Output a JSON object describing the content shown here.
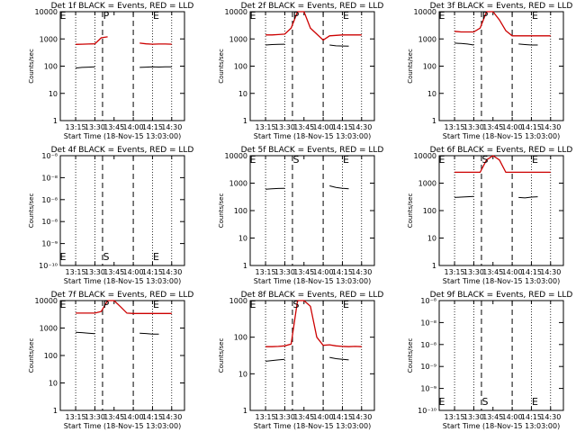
{
  "figure": {
    "x_label": "Start Time (18-Nov-15 13:03:00)",
    "y_label": "Counts/sec",
    "time_ticks": [
      "13:15",
      "13:30",
      "13:45",
      "14:00",
      "14:15",
      "14:30"
    ],
    "markers": [
      "S",
      "P",
      "E"
    ],
    "colors": {
      "events": "#000000",
      "lld": "#cc0000",
      "axes": "#000000"
    }
  },
  "chart_data": [
    {
      "type": "line",
      "title": "Det 1f BLACK = Events, RED = LLD",
      "yscale": "log",
      "ylim": [
        1,
        10000
      ],
      "y_ticks": [
        "1",
        "10",
        "100",
        "1000",
        "10000"
      ],
      "x": [
        "13:15",
        "13:20",
        "13:25",
        "13:30",
        "13:35",
        "13:40",
        "13:45",
        "13:50",
        "13:55",
        "14:00",
        "14:05",
        "14:10",
        "14:15",
        "14:20",
        "14:25",
        "14:30"
      ],
      "series": [
        {
          "name": "Events",
          "values": [
            85,
            90,
            92,
            95,
            null,
            null,
            null,
            null,
            null,
            null,
            90,
            92,
            95,
            93,
            94,
            95
          ]
        },
        {
          "name": "LLD",
          "values": [
            630,
            640,
            650,
            660,
            1100,
            1200,
            null,
            null,
            null,
            null,
            700,
            660,
            640,
            650,
            650,
            640
          ]
        }
      ]
    },
    {
      "type": "line",
      "title": "Det 2f BLACK = Events, RED = LLD",
      "yscale": "log",
      "ylim": [
        1,
        10000
      ],
      "y_ticks": [
        "1",
        "10",
        "100",
        "1000",
        "10000"
      ],
      "x": [
        "13:15",
        "13:20",
        "13:25",
        "13:30",
        "13:35",
        "13:40",
        "13:45",
        "13:50",
        "13:55",
        "14:00",
        "14:05",
        "14:10",
        "14:15",
        "14:20",
        "14:25",
        "14:30"
      ],
      "series": [
        {
          "name": "Events",
          "values": [
            600,
            620,
            630,
            640,
            null,
            null,
            null,
            null,
            null,
            null,
            600,
            560,
            550,
            540,
            null,
            null
          ]
        },
        {
          "name": "LLD",
          "values": [
            1400,
            1400,
            1450,
            1500,
            2500,
            10000,
            10000,
            2500,
            1500,
            900,
            1300,
            1350,
            1400,
            1400,
            1400,
            1400
          ]
        }
      ]
    },
    {
      "type": "line",
      "title": "Det 3f BLACK = Events, RED = LLD",
      "yscale": "log",
      "ylim": [
        1,
        10000
      ],
      "y_ticks": [
        "1",
        "10",
        "100",
        "1000",
        "10000"
      ],
      "x": [
        "13:15",
        "13:20",
        "13:25",
        "13:30",
        "13:35",
        "13:40",
        "13:45",
        "13:50",
        "13:55",
        "14:00",
        "14:05",
        "14:10",
        "14:15",
        "14:20",
        "14:25",
        "14:30"
      ],
      "series": [
        {
          "name": "Events",
          "values": [
            700,
            680,
            650,
            600,
            null,
            null,
            null,
            null,
            null,
            null,
            650,
            620,
            600,
            600,
            null,
            null
          ]
        },
        {
          "name": "LLD",
          "values": [
            1900,
            1800,
            1800,
            1800,
            2500,
            10000,
            10000,
            5000,
            2000,
            1300,
            1300,
            1300,
            1300,
            1300,
            1300,
            1300
          ]
        }
      ]
    },
    {
      "type": "line",
      "title": "Det 4f BLACK = Events, RED = LLD",
      "yscale": "log",
      "ylim": [
        1e-10,
        1e-08
      ],
      "y_ticks": [
        "10⁻¹⁰",
        "10⁻⁹",
        "10⁻⁸",
        "10⁻⁸",
        "10⁻⁸",
        "10⁻⁸"
      ],
      "x": [],
      "series": []
    },
    {
      "type": "line",
      "title": "Det 5f BLACK = Events, RED = LLD",
      "yscale": "log",
      "ylim": [
        1,
        10000
      ],
      "y_ticks": [
        "1",
        "10",
        "100",
        "1000",
        "10000"
      ],
      "x": [
        "13:15",
        "13:20",
        "13:25",
        "13:30",
        "13:35",
        "13:40",
        "13:45",
        "13:50",
        "13:55",
        "14:00",
        "14:05",
        "14:10",
        "14:15",
        "14:20",
        "14:25",
        "14:30"
      ],
      "series": [
        {
          "name": "Events",
          "values": [
            600,
            620,
            640,
            650,
            null,
            null,
            null,
            null,
            null,
            null,
            800,
            700,
            650,
            620,
            null,
            null
          ]
        }
      ]
    },
    {
      "type": "line",
      "title": "Det 6f BLACK = Events, RED = LLD",
      "yscale": "log",
      "ylim": [
        1,
        10000
      ],
      "y_ticks": [
        "1",
        "10",
        "100",
        "1000",
        "10000"
      ],
      "x": [
        "13:15",
        "13:20",
        "13:25",
        "13:30",
        "13:35",
        "13:40",
        "13:45",
        "13:50",
        "13:55",
        "14:00",
        "14:05",
        "14:10",
        "14:15",
        "14:20",
        "14:25",
        "14:30"
      ],
      "series": [
        {
          "name": "Events",
          "values": [
            300,
            310,
            320,
            330,
            null,
            null,
            null,
            null,
            null,
            null,
            300,
            290,
            310,
            320,
            null,
            null
          ]
        },
        {
          "name": "LLD",
          "values": [
            2500,
            2500,
            2500,
            2500,
            2500,
            7000,
            10000,
            7000,
            2500,
            2500,
            2500,
            2500,
            2500,
            2500,
            2500,
            2500
          ]
        }
      ]
    },
    {
      "type": "line",
      "title": "Det 7f BLACK = Events, RED = LLD",
      "yscale": "log",
      "ylim": [
        1,
        10000
      ],
      "y_ticks": [
        "1",
        "10",
        "100",
        "1000",
        "10000"
      ],
      "x": [
        "13:15",
        "13:20",
        "13:25",
        "13:30",
        "13:35",
        "13:40",
        "13:45",
        "13:50",
        "13:55",
        "14:00",
        "14:05",
        "14:10",
        "14:15",
        "14:20",
        "14:25",
        "14:30"
      ],
      "series": [
        {
          "name": "Events",
          "values": [
            700,
            680,
            650,
            620,
            null,
            null,
            null,
            null,
            null,
            null,
            650,
            630,
            600,
            600,
            null,
            null
          ]
        },
        {
          "name": "LLD",
          "values": [
            3500,
            3500,
            3500,
            3500,
            4000,
            10000,
            10000,
            6000,
            3500,
            3400,
            3400,
            3400,
            3400,
            3400,
            3400,
            3400
          ]
        }
      ]
    },
    {
      "type": "line",
      "title": "Det 8f BLACK = Events, RED = LLD",
      "yscale": "log",
      "ylim": [
        1,
        1000
      ],
      "y_ticks": [
        "1",
        "10",
        "100",
        "1000"
      ],
      "x": [
        "13:15",
        "13:20",
        "13:25",
        "13:30",
        "13:35",
        "13:40",
        "13:45",
        "13:50",
        "13:55",
        "14:00",
        "14:05",
        "14:10",
        "14:15",
        "14:20",
        "14:25",
        "14:30"
      ],
      "series": [
        {
          "name": "Events",
          "values": [
            22,
            23,
            24,
            25,
            null,
            null,
            null,
            null,
            null,
            null,
            28,
            26,
            25,
            24,
            null,
            null
          ]
        },
        {
          "name": "LLD",
          "values": [
            55,
            55,
            56,
            58,
            65,
            1000,
            1000,
            700,
            100,
            60,
            62,
            58,
            56,
            55,
            56,
            55
          ]
        }
      ]
    },
    {
      "type": "line",
      "title": "Det 9f BLACK = Events, RED = LLD",
      "yscale": "log",
      "ylim": [
        1e-10,
        1e-08
      ],
      "y_ticks": [
        "10⁻¹⁰",
        "10⁻⁹",
        "10⁻⁹",
        "10⁻⁸",
        "10⁻⁸",
        "10⁻⁸"
      ],
      "x": [],
      "series": []
    }
  ]
}
